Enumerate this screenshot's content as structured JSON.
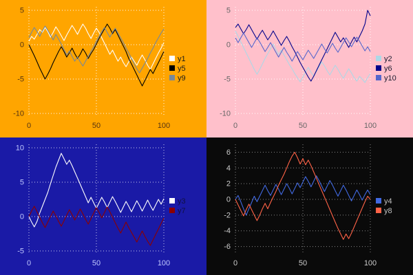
{
  "page": {
    "background": "#000000",
    "layout": "2x2 multiplot of line charts"
  },
  "chart_data": [
    {
      "type": "line",
      "position": "top-left",
      "title": "",
      "xlabel": "",
      "ylabel": "",
      "bg": "#ffa500",
      "grid_color": "#ffffff",
      "tick_color": "#553311",
      "legend_text": "#1a1a1a",
      "legend_position": "right-middle",
      "grid": true,
      "xlim": [
        0,
        100
      ],
      "ylim": [
        -10.5,
        5.5
      ],
      "xticks": [
        0,
        50,
        100
      ],
      "yticks": [
        5,
        0,
        -5,
        -10
      ],
      "x_start": 0,
      "x_step": 2,
      "series": [
        {
          "name": "y1",
          "color": "#ffffff",
          "values": [
            0.5,
            1.2,
            0.8,
            1.5,
            2.2,
            1.8,
            2.5,
            1.9,
            1.1,
            1.8,
            2.6,
            2.0,
            1.3,
            0.6,
            1.4,
            2.1,
            2.8,
            2.2,
            1.5,
            2.3,
            3.0,
            2.4,
            1.6,
            0.9,
            1.7,
            2.4,
            1.8,
            1.0,
            0.2,
            -0.6,
            -1.4,
            -0.8,
            -1.6,
            -2.4,
            -1.8,
            -2.6,
            -3.2,
            -2.5,
            -1.8,
            -2.4,
            -3.0,
            -2.2,
            -1.5,
            -2.2,
            -3.0,
            -3.6,
            -2.8,
            -2.0,
            -1.2,
            -0.5,
            0.3
          ]
        },
        {
          "name": "y5",
          "color": "#000000",
          "values": [
            0.0,
            -0.8,
            -1.6,
            -2.5,
            -3.4,
            -4.2,
            -5.0,
            -4.3,
            -3.5,
            -2.6,
            -1.8,
            -1.0,
            -0.3,
            -1.0,
            -1.8,
            -1.2,
            -0.5,
            -1.3,
            -2.0,
            -1.4,
            -0.6,
            -1.2,
            -2.0,
            -1.3,
            -0.7,
            0.1,
            0.9,
            1.6,
            2.3,
            3.0,
            2.4,
            1.6,
            2.2,
            1.4,
            0.6,
            -0.2,
            -1.0,
            -2.0,
            -2.8,
            -3.6,
            -4.4,
            -5.2,
            -6.0,
            -5.2,
            -4.4,
            -3.6,
            -4.2,
            -3.4,
            -2.6,
            -1.8,
            -1.0
          ]
        },
        {
          "name": "y9",
          "color": "#778899",
          "values": [
            1.0,
            1.8,
            2.5,
            1.9,
            1.2,
            2.0,
            2.7,
            2.1,
            1.4,
            0.7,
            1.5,
            0.8,
            0.1,
            -0.7,
            -1.5,
            -0.9,
            -1.7,
            -2.4,
            -1.8,
            -2.5,
            -3.1,
            -2.4,
            -1.7,
            -1.0,
            -0.3,
            0.5,
            1.2,
            1.9,
            2.5,
            1.8,
            1.1,
            1.8,
            2.4,
            1.7,
            1.0,
            0.3,
            -0.5,
            -1.2,
            -2.0,
            -2.8,
            -3.5,
            -4.1,
            -3.4,
            -2.7,
            -2.0,
            -1.2,
            -0.5,
            0.3,
            1.0,
            1.7,
            2.3
          ]
        }
      ]
    },
    {
      "type": "line",
      "position": "top-right",
      "title": "",
      "xlabel": "",
      "ylabel": "",
      "bg": "#ffc0cb",
      "grid_color": "#ffffff",
      "tick_color": "#666666",
      "legend_text": "#1a1a2e",
      "legend_position": "right-middle",
      "grid": true,
      "xlim": [
        0,
        100
      ],
      "ylim": [
        -10.5,
        5.5
      ],
      "xticks": [
        0,
        50,
        100
      ],
      "yticks": [
        5,
        0,
        -5,
        -10
      ],
      "x_start": 0,
      "x_step": 2,
      "series": [
        {
          "name": "y2",
          "color": "#add8e6",
          "values": [
            2.0,
            1.2,
            0.4,
            -0.4,
            -1.2,
            -2.0,
            -2.8,
            -3.6,
            -4.3,
            -3.6,
            -2.8,
            -2.0,
            -1.3,
            -0.6,
            0.1,
            -0.7,
            -1.4,
            -0.8,
            -1.5,
            -2.2,
            -2.9,
            -3.5,
            -4.2,
            -4.8,
            -5.4,
            -4.7,
            -4.0,
            -3.3,
            -4.0,
            -4.6,
            -3.9,
            -3.2,
            -2.5,
            -3.1,
            -3.8,
            -4.4,
            -3.7,
            -3.0,
            -3.6,
            -4.3,
            -4.9,
            -4.2,
            -3.5,
            -4.1,
            -4.8,
            -5.3,
            -4.6,
            -5.0,
            -5.5,
            -4.8,
            -4.2
          ]
        },
        {
          "name": "y6",
          "color": "#00008b",
          "values": [
            2.5,
            3.0,
            2.3,
            1.6,
            2.2,
            2.9,
            2.2,
            1.5,
            0.8,
            1.5,
            2.1,
            1.4,
            0.7,
            1.3,
            2.0,
            1.3,
            0.6,
            -0.1,
            0.6,
            1.2,
            0.5,
            -0.3,
            -1.0,
            -1.8,
            -2.6,
            -3.3,
            -4.0,
            -4.7,
            -5.3,
            -4.6,
            -3.8,
            -3.0,
            -2.2,
            -1.4,
            -0.6,
            0.2,
            1.0,
            1.8,
            1.1,
            0.4,
            1.0,
            0.3,
            -0.4,
            0.4,
            1.1,
            0.4,
            1.2,
            2.0,
            3.0,
            5.0,
            4.2
          ]
        },
        {
          "name": "y10",
          "color": "#5566cc",
          "values": [
            1.0,
            0.3,
            1.0,
            1.7,
            1.0,
            0.3,
            -0.4,
            0.3,
            1.0,
            0.4,
            -0.3,
            -1.0,
            -0.4,
            0.3,
            -0.4,
            -1.1,
            -1.8,
            -1.1,
            -0.4,
            -1.1,
            -1.7,
            -2.4,
            -1.7,
            -1.0,
            -1.6,
            -2.2,
            -1.5,
            -0.8,
            -1.4,
            -2.0,
            -1.3,
            -0.6,
            0.1,
            -0.6,
            -1.2,
            -0.5,
            0.2,
            -0.5,
            -1.1,
            -0.4,
            0.3,
            1.0,
            0.4,
            -0.3,
            0.4,
            1.1,
            0.5,
            -0.2,
            -0.9,
            -0.3,
            -1.0
          ]
        }
      ]
    },
    {
      "type": "line",
      "position": "bottom-left",
      "title": "",
      "xlabel": "",
      "ylabel": "",
      "bg": "#1a1aa6",
      "grid_color": "#ccccee",
      "tick_color": "#c0c8ff",
      "legend_text": "#101040",
      "legend_position": "right-middle",
      "grid": true,
      "xlim": [
        0,
        100
      ],
      "ylim": [
        -5.5,
        10.5
      ],
      "xticks": [
        0,
        50,
        100
      ],
      "yticks": [
        10,
        5,
        0,
        -5
      ],
      "x_start": 0,
      "x_step": 2,
      "series": [
        {
          "name": "y3",
          "color": "#ffffff",
          "values": [
            0.0,
            -0.8,
            -1.5,
            -0.7,
            0.5,
            1.5,
            2.5,
            3.5,
            4.8,
            6.0,
            7.2,
            8.2,
            9.2,
            8.4,
            7.6,
            8.2,
            7.4,
            6.5,
            5.6,
            4.7,
            3.8,
            2.9,
            2.0,
            2.8,
            2.0,
            1.2,
            2.0,
            2.8,
            2.1,
            1.3,
            2.1,
            2.9,
            2.2,
            1.4,
            0.6,
            1.4,
            2.2,
            1.5,
            0.7,
            1.5,
            2.3,
            1.6,
            0.8,
            1.6,
            2.4,
            1.6,
            0.9,
            1.7,
            2.5,
            1.8,
            2.6
          ]
        },
        {
          "name": "y7",
          "color": "#8b0000",
          "values": [
            0.0,
            0.8,
            1.5,
            0.7,
            -0.1,
            -0.9,
            -1.6,
            -0.8,
            0.0,
            0.8,
            0.1,
            -0.7,
            -1.4,
            -0.6,
            0.2,
            1.0,
            0.3,
            -0.5,
            0.3,
            1.1,
            0.4,
            -0.4,
            -1.1,
            -0.3,
            0.5,
            1.3,
            0.6,
            -0.2,
            0.6,
            1.4,
            0.7,
            -0.1,
            -0.9,
            -1.7,
            -2.4,
            -1.6,
            -0.8,
            -1.6,
            -2.3,
            -3.0,
            -3.7,
            -2.9,
            -2.1,
            -2.9,
            -3.6,
            -4.2,
            -3.4,
            -2.6,
            -1.8,
            -1.0,
            -0.2
          ]
        }
      ]
    },
    {
      "type": "line",
      "position": "bottom-right",
      "title": "",
      "xlabel": "",
      "ylabel": "",
      "bg": "#0a0a0a",
      "grid_color": "#888888",
      "tick_color": "#cccccc",
      "legend_text": "#c0c0c0",
      "legend_position": "right-middle",
      "grid": true,
      "xlim": [
        0,
        100
      ],
      "ylim": [
        -7,
        7
      ],
      "xticks": [
        0,
        50,
        100
      ],
      "yticks": [
        6,
        4,
        2,
        0,
        -2,
        -4,
        -6
      ],
      "x_start": 0,
      "x_step": 2,
      "series": [
        {
          "name": "y4",
          "color": "#4169e1",
          "values": [
            0.0,
            0.5,
            -0.3,
            -1.2,
            -2.0,
            -1.2,
            -0.4,
            0.4,
            -0.3,
            0.4,
            1.1,
            1.8,
            1.1,
            0.5,
            1.2,
            1.9,
            1.3,
            0.6,
            1.3,
            2.0,
            1.4,
            0.7,
            1.4,
            2.1,
            1.5,
            2.2,
            2.9,
            2.3,
            1.6,
            2.3,
            3.0,
            2.4,
            1.7,
            1.0,
            1.7,
            2.4,
            1.8,
            1.1,
            0.4,
            1.1,
            1.8,
            1.2,
            0.5,
            -0.2,
            0.5,
            1.2,
            0.6,
            -0.1,
            0.6,
            1.2,
            0.6
          ]
        },
        {
          "name": "y8",
          "color": "#ff6347",
          "values": [
            0.0,
            -0.7,
            -1.4,
            -2.1,
            -1.3,
            -0.6,
            -1.3,
            -2.0,
            -2.7,
            -2.0,
            -1.2,
            -0.5,
            -1.2,
            -0.4,
            0.3,
            1.0,
            1.8,
            2.5,
            3.2,
            4.0,
            4.8,
            5.5,
            6.0,
            5.3,
            4.5,
            5.2,
            4.4,
            5.0,
            4.3,
            3.5,
            2.7,
            1.9,
            1.1,
            0.3,
            -0.5,
            -1.3,
            -2.1,
            -2.9,
            -3.7,
            -4.4,
            -5.1,
            -4.4,
            -5.0,
            -4.3,
            -3.5,
            -2.7,
            -1.9,
            -1.1,
            -0.3,
            0.4,
            0.0
          ]
        }
      ]
    }
  ]
}
